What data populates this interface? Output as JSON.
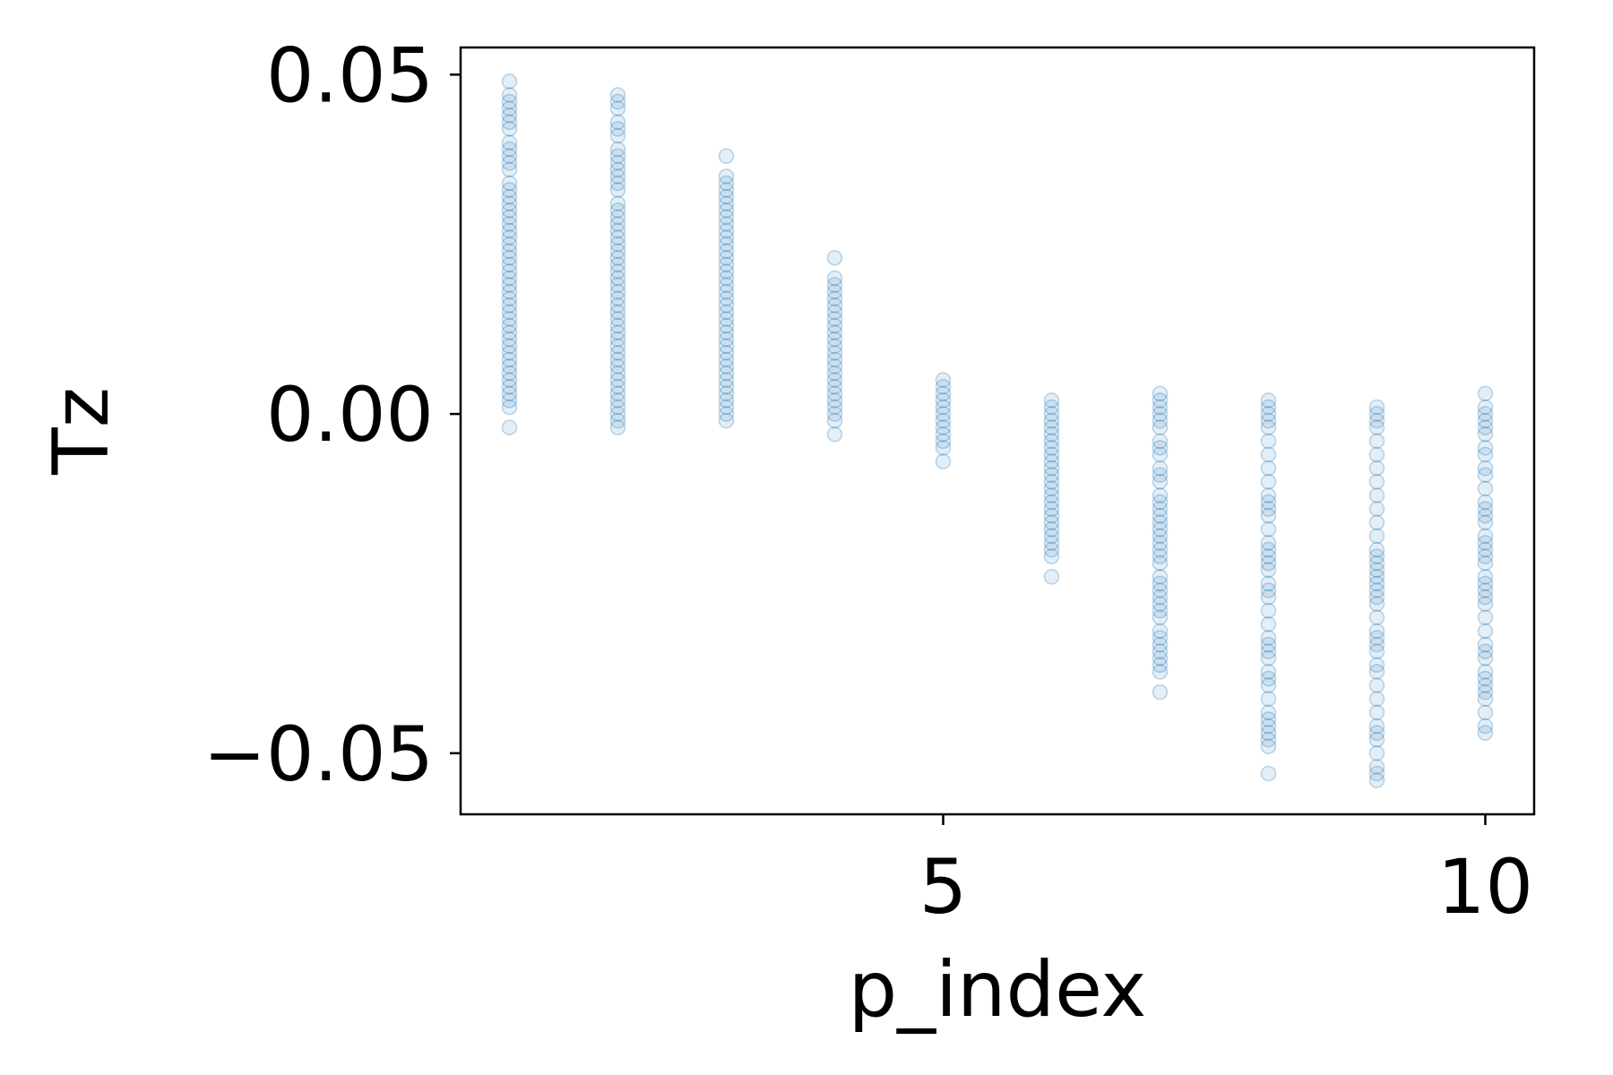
{
  "chart_data": {
    "type": "scatter",
    "xlabel": "p_index",
    "ylabel": "Tz",
    "xlim": [
      0.55,
      10.45
    ],
    "ylim": [
      -0.059,
      0.054
    ],
    "xticks": [
      5,
      10
    ],
    "xtick_labels": [
      "5",
      "10"
    ],
    "yticks": [
      -0.05,
      0.0,
      0.05
    ],
    "ytick_labels": [
      "−0.05",
      "0.00",
      "0.05"
    ],
    "grid": false,
    "legend": "none",
    "marker_color": "#1f77b4",
    "marker_alpha": 0.12,
    "series": [
      {
        "values_by_x": [
          {
            "x": 1,
            "y": [
              0.049,
              0.047,
              0.046,
              0.045,
              0.044,
              0.043,
              0.042,
              0.04,
              0.039,
              0.038,
              0.037,
              0.036,
              0.034,
              0.033,
              0.032,
              0.031,
              0.03,
              0.029,
              0.028,
              0.027,
              0.026,
              0.025,
              0.024,
              0.023,
              0.022,
              0.021,
              0.02,
              0.019,
              0.018,
              0.017,
              0.016,
              0.015,
              0.014,
              0.013,
              0.012,
              0.011,
              0.01,
              0.009,
              0.008,
              0.007,
              0.006,
              0.005,
              0.004,
              0.003,
              0.002,
              0.001,
              -0.002
            ]
          },
          {
            "x": 2,
            "y": [
              0.047,
              0.046,
              0.045,
              0.043,
              0.042,
              0.041,
              0.039,
              0.038,
              0.037,
              0.036,
              0.035,
              0.034,
              0.033,
              0.031,
              0.03,
              0.029,
              0.028,
              0.027,
              0.026,
              0.025,
              0.024,
              0.023,
              0.022,
              0.021,
              0.02,
              0.019,
              0.018,
              0.017,
              0.016,
              0.015,
              0.014,
              0.013,
              0.012,
              0.011,
              0.01,
              0.009,
              0.008,
              0.007,
              0.006,
              0.005,
              0.004,
              0.003,
              0.002,
              0.001,
              0.0,
              -0.001,
              -0.002
            ]
          },
          {
            "x": 3,
            "y": [
              0.038,
              0.035,
              0.034,
              0.033,
              0.032,
              0.031,
              0.03,
              0.029,
              0.028,
              0.027,
              0.026,
              0.025,
              0.024,
              0.023,
              0.022,
              0.021,
              0.02,
              0.019,
              0.018,
              0.017,
              0.016,
              0.015,
              0.014,
              0.013,
              0.012,
              0.011,
              0.01,
              0.009,
              0.008,
              0.007,
              0.006,
              0.005,
              0.004,
              0.003,
              0.002,
              0.001,
              0.0,
              -0.001
            ]
          },
          {
            "x": 4,
            "y": [
              0.023,
              0.02,
              0.019,
              0.018,
              0.017,
              0.016,
              0.015,
              0.014,
              0.013,
              0.012,
              0.011,
              0.01,
              0.009,
              0.008,
              0.007,
              0.006,
              0.005,
              0.004,
              0.003,
              0.002,
              0.001,
              0.0,
              -0.001,
              -0.003
            ]
          },
          {
            "x": 5,
            "y": [
              0.005,
              0.004,
              0.003,
              0.002,
              0.001,
              0.0,
              -0.001,
              -0.002,
              -0.003,
              -0.004,
              -0.005,
              -0.007
            ]
          },
          {
            "x": 6,
            "y": [
              0.002,
              0.001,
              0.0,
              -0.001,
              -0.002,
              -0.003,
              -0.004,
              -0.005,
              -0.006,
              -0.007,
              -0.008,
              -0.009,
              -0.01,
              -0.011,
              -0.012,
              -0.013,
              -0.014,
              -0.015,
              -0.016,
              -0.017,
              -0.018,
              -0.019,
              -0.02,
              -0.021,
              -0.024
            ]
          },
          {
            "x": 7,
            "y": [
              0.003,
              0.002,
              0.001,
              0.0,
              -0.001,
              -0.002,
              -0.004,
              -0.005,
              -0.006,
              -0.008,
              -0.009,
              -0.01,
              -0.012,
              -0.013,
              -0.014,
              -0.015,
              -0.016,
              -0.017,
              -0.018,
              -0.019,
              -0.02,
              -0.021,
              -0.022,
              -0.024,
              -0.025,
              -0.026,
              -0.027,
              -0.028,
              -0.029,
              -0.03,
              -0.032,
              -0.033,
              -0.034,
              -0.035,
              -0.036,
              -0.037,
              -0.038,
              -0.041
            ]
          },
          {
            "x": 8,
            "y": [
              0.002,
              0.001,
              0.0,
              -0.001,
              -0.002,
              -0.004,
              -0.006,
              -0.008,
              -0.01,
              -0.012,
              -0.013,
              -0.014,
              -0.015,
              -0.017,
              -0.019,
              -0.02,
              -0.021,
              -0.022,
              -0.023,
              -0.025,
              -0.026,
              -0.027,
              -0.029,
              -0.031,
              -0.033,
              -0.034,
              -0.035,
              -0.036,
              -0.038,
              -0.039,
              -0.04,
              -0.042,
              -0.044,
              -0.045,
              -0.046,
              -0.047,
              -0.048,
              -0.049,
              -0.053
            ]
          },
          {
            "x": 9,
            "y": [
              0.001,
              0.0,
              -0.001,
              -0.002,
              -0.004,
              -0.006,
              -0.008,
              -0.01,
              -0.012,
              -0.014,
              -0.016,
              -0.018,
              -0.02,
              -0.021,
              -0.022,
              -0.023,
              -0.024,
              -0.025,
              -0.026,
              -0.027,
              -0.028,
              -0.03,
              -0.032,
              -0.033,
              -0.034,
              -0.035,
              -0.037,
              -0.038,
              -0.04,
              -0.042,
              -0.044,
              -0.046,
              -0.047,
              -0.048,
              -0.05,
              -0.052,
              -0.053,
              -0.054
            ]
          },
          {
            "x": 10,
            "y": [
              0.003,
              0.001,
              0.0,
              -0.001,
              -0.002,
              -0.003,
              -0.005,
              -0.006,
              -0.008,
              -0.009,
              -0.011,
              -0.013,
              -0.014,
              -0.015,
              -0.016,
              -0.018,
              -0.019,
              -0.02,
              -0.021,
              -0.022,
              -0.024,
              -0.025,
              -0.026,
              -0.027,
              -0.028,
              -0.03,
              -0.032,
              -0.034,
              -0.035,
              -0.036,
              -0.038,
              -0.039,
              -0.04,
              -0.041,
              -0.042,
              -0.044,
              -0.046,
              -0.047
            ]
          }
        ]
      }
    ]
  }
}
